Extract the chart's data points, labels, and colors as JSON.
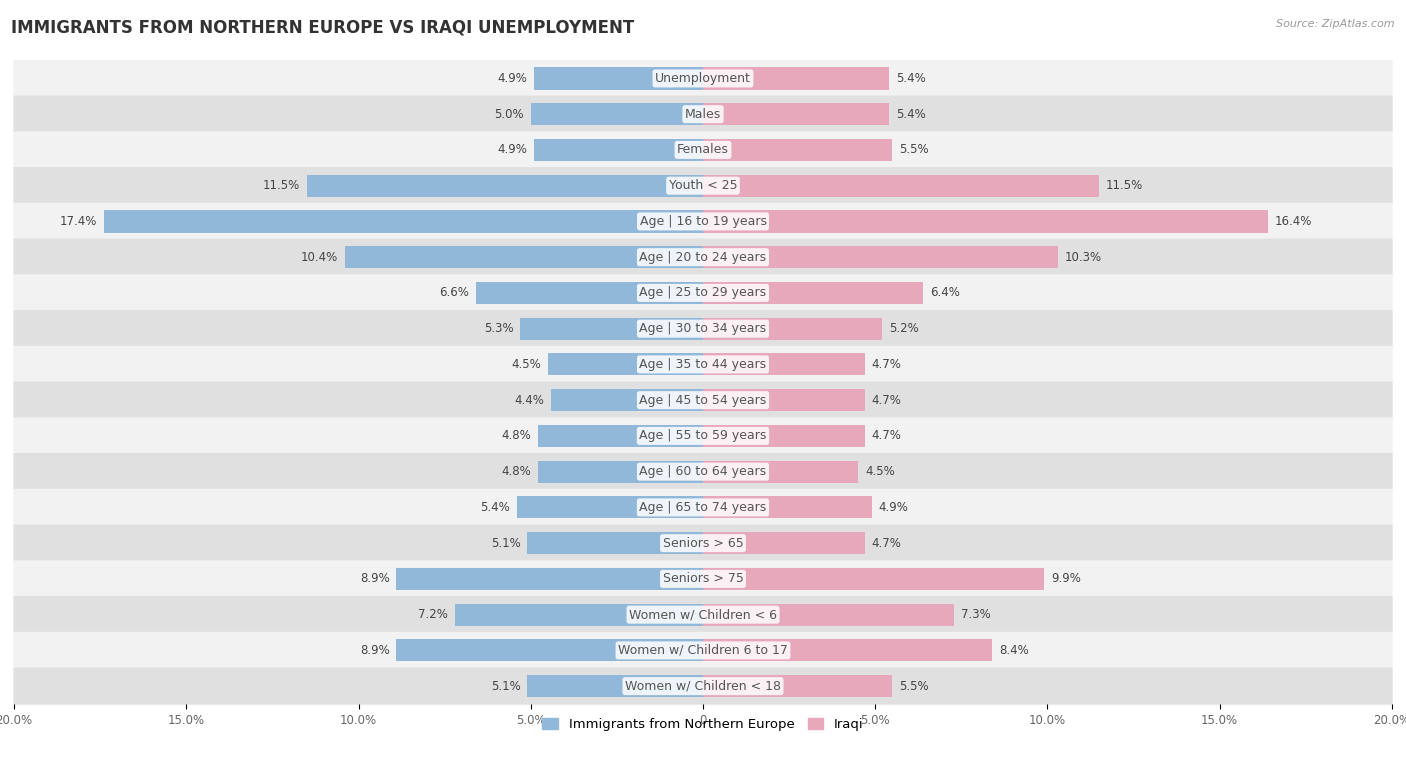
{
  "title": "IMMIGRANTS FROM NORTHERN EUROPE VS IRAQI UNEMPLOYMENT",
  "source": "Source: ZipAtlas.com",
  "categories": [
    "Unemployment",
    "Males",
    "Females",
    "Youth < 25",
    "Age | 16 to 19 years",
    "Age | 20 to 24 years",
    "Age | 25 to 29 years",
    "Age | 30 to 34 years",
    "Age | 35 to 44 years",
    "Age | 45 to 54 years",
    "Age | 55 to 59 years",
    "Age | 60 to 64 years",
    "Age | 65 to 74 years",
    "Seniors > 65",
    "Seniors > 75",
    "Women w/ Children < 6",
    "Women w/ Children 6 to 17",
    "Women w/ Children < 18"
  ],
  "left_values": [
    4.9,
    5.0,
    4.9,
    11.5,
    17.4,
    10.4,
    6.6,
    5.3,
    4.5,
    4.4,
    4.8,
    4.8,
    5.4,
    5.1,
    8.9,
    7.2,
    8.9,
    5.1
  ],
  "right_values": [
    5.4,
    5.4,
    5.5,
    11.5,
    16.4,
    10.3,
    6.4,
    5.2,
    4.7,
    4.7,
    4.7,
    4.5,
    4.9,
    4.7,
    9.9,
    7.3,
    8.4,
    5.5
  ],
  "left_color": "#92b8d9",
  "right_color": "#e8a8bc",
  "left_label": "Immigrants from Northern Europe",
  "right_label": "Iraqi",
  "xlim": 20.0,
  "bg_color": "#ffffff",
  "row_bg_light": "#f2f2f2",
  "row_bg_dark": "#e0e0e0",
  "bar_height": 0.62,
  "title_fontsize": 12,
  "label_fontsize": 9,
  "value_fontsize": 8.5,
  "legend_fontsize": 9.5,
  "tick_fontsize": 8.5
}
